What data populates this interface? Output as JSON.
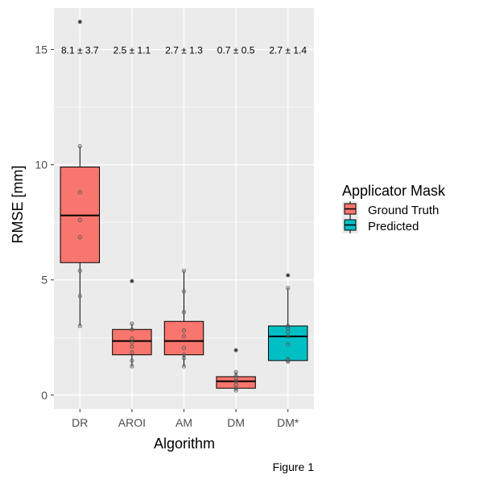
{
  "caption": "Figure 1",
  "colors": {
    "panel_bg": "#EBEBEB",
    "grid": "#FFFFFF",
    "ground_truth": "#F8766D",
    "predicted": "#00BFC4"
  },
  "chart_data": {
    "type": "box",
    "xlabel": "Algorithm",
    "ylabel": "RMSE [mm]",
    "ylim": [
      -0.6,
      16.8
    ],
    "yticks": [
      0,
      5,
      10,
      15
    ],
    "ytick_labels": [
      "0",
      "5",
      "10",
      "15"
    ],
    "categories": [
      "DR",
      "AROI",
      "AM",
      "DM",
      "DM*"
    ],
    "annotations": [
      "8.1 ± 3.7",
      "2.5 ± 1.1",
      "2.7 ± 1.3",
      "0.7 ± 0.5",
      "2.7 ± 1.4"
    ],
    "annotation_y": 15,
    "legend": {
      "title": "Applicator Mask",
      "position": "right",
      "entries": [
        {
          "key": "gt",
          "label": "Ground Truth"
        },
        {
          "key": "pred",
          "label": "Predicted"
        }
      ]
    },
    "grid": true,
    "boxes": [
      {
        "category": "DR",
        "mask": "gt",
        "whisker_low": 3.0,
        "q1": 5.75,
        "median": 7.8,
        "q3": 9.9,
        "whisker_high": 10.8,
        "outliers": [
          16.2
        ],
        "points": [
          3.0,
          4.3,
          5.4,
          6.85,
          7.6,
          8.8,
          10.8,
          16.2
        ]
      },
      {
        "category": "AROI",
        "mask": "gt",
        "whisker_low": 1.25,
        "q1": 1.75,
        "median": 2.35,
        "q3": 2.85,
        "whisker_high": 3.1,
        "outliers": [
          4.95
        ],
        "points": [
          1.25,
          1.5,
          1.85,
          2.1,
          2.3,
          2.45,
          2.85,
          3.1,
          4.95
        ]
      },
      {
        "category": "AM",
        "mask": "gt",
        "whisker_low": 1.25,
        "q1": 1.75,
        "median": 2.35,
        "q3": 3.2,
        "whisker_high": 5.4,
        "outliers": [],
        "points": [
          1.25,
          1.6,
          1.75,
          2.05,
          2.55,
          2.8,
          3.6,
          4.5,
          5.4
        ]
      },
      {
        "category": "DM",
        "mask": "gt",
        "whisker_low": 0.2,
        "q1": 0.3,
        "median": 0.6,
        "q3": 0.8,
        "whisker_high": 1.0,
        "outliers": [
          1.95
        ],
        "points": [
          0.2,
          0.3,
          0.45,
          0.6,
          0.75,
          0.85,
          1.0,
          1.95
        ]
      },
      {
        "category": "DM*",
        "mask": "pred",
        "whisker_low": 1.45,
        "q1": 1.5,
        "median": 2.55,
        "q3": 3.0,
        "whisker_high": 4.65,
        "outliers": [
          5.2
        ],
        "points": [
          1.45,
          1.5,
          1.55,
          2.2,
          2.55,
          2.75,
          2.9,
          3.0,
          4.65,
          5.2
        ]
      }
    ]
  }
}
